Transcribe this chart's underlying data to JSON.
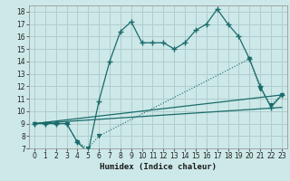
{
  "xlabel": "Humidex (Indice chaleur)",
  "xlim": [
    -0.5,
    23.5
  ],
  "ylim": [
    7,
    18.5
  ],
  "xticks": [
    0,
    1,
    2,
    3,
    4,
    5,
    6,
    7,
    8,
    9,
    10,
    11,
    12,
    13,
    14,
    15,
    16,
    17,
    18,
    19,
    20,
    21,
    22,
    23
  ],
  "yticks": [
    7,
    8,
    9,
    10,
    11,
    12,
    13,
    14,
    15,
    16,
    17,
    18
  ],
  "bg_color": "#cde8e8",
  "grid_color": "#b0cccc",
  "line_color": "#1a6b6b",
  "series1_x": [
    0,
    1,
    2,
    3,
    4,
    5,
    6,
    7,
    8,
    9,
    10,
    11,
    12,
    13,
    14,
    15,
    16,
    17,
    18,
    19,
    20,
    21,
    22,
    23
  ],
  "series1_y": [
    9,
    9,
    9,
    9,
    7.5,
    6.7,
    10.8,
    14.0,
    16.4,
    17.2,
    15.5,
    15.5,
    15.5,
    15.0,
    15.5,
    16.5,
    17.0,
    18.2,
    17.0,
    16.0,
    14.2,
    12.0,
    10.3,
    11.3
  ],
  "series2_x": [
    0,
    1,
    2,
    3,
    4,
    5,
    6,
    20,
    21,
    22,
    23
  ],
  "series2_y": [
    9,
    9,
    9,
    9,
    7.5,
    7.0,
    8.0,
    14.2,
    11.8,
    10.5,
    11.3
  ],
  "line2_x": [
    0,
    23
  ],
  "line2_y": [
    9,
    11.3
  ],
  "line3_x": [
    0,
    23
  ],
  "line3_y": [
    9,
    10.3
  ]
}
